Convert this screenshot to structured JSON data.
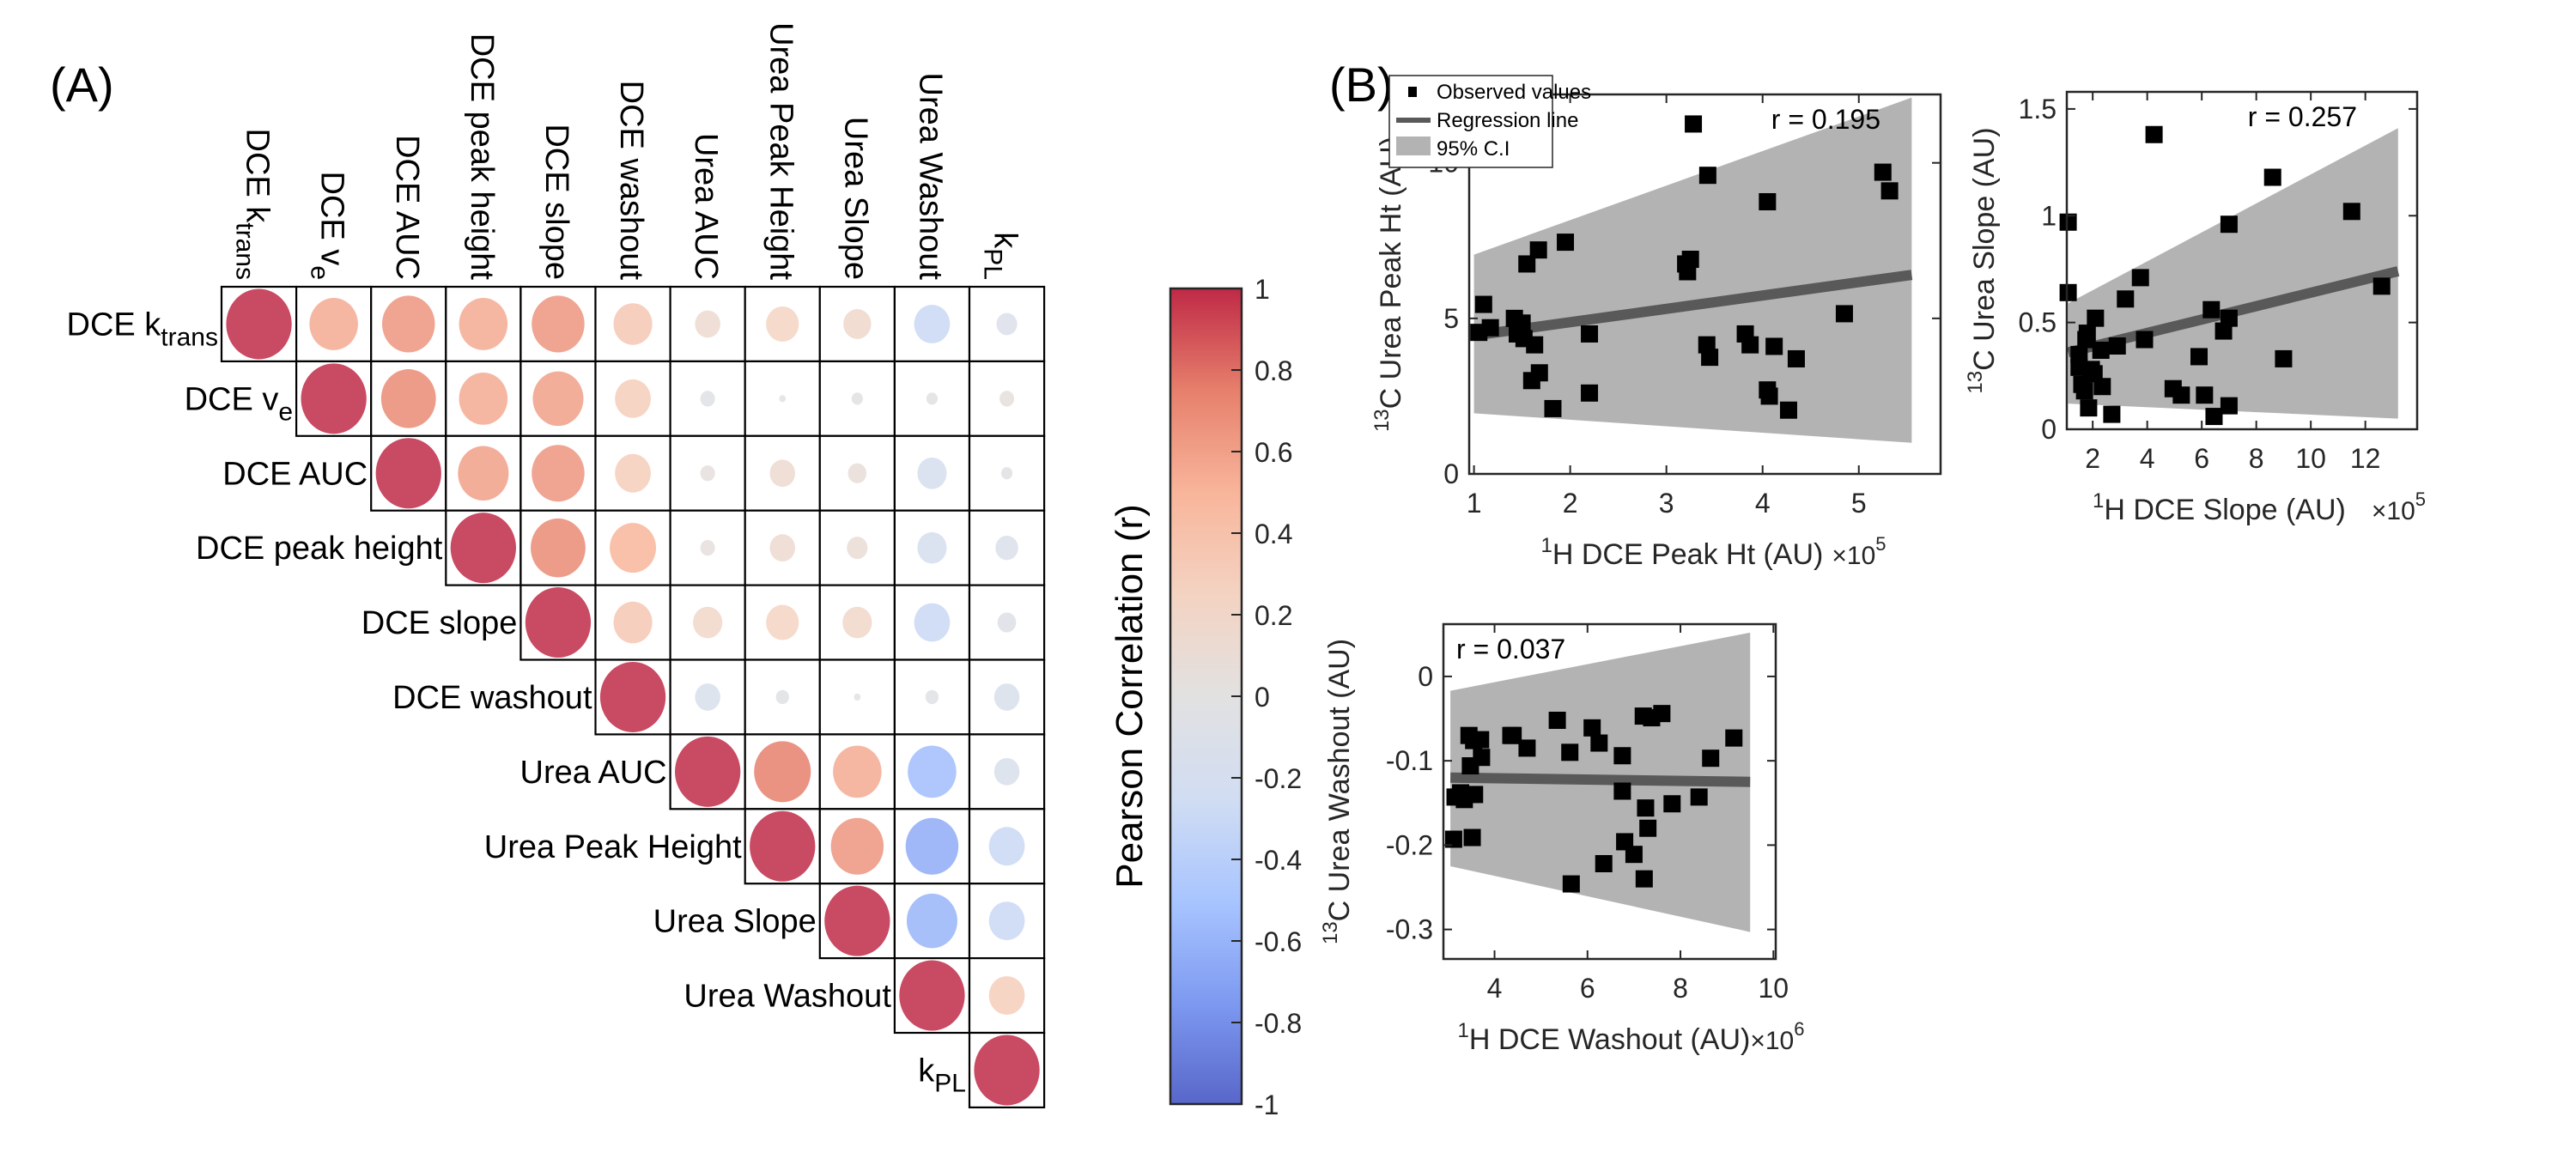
{
  "figure": {
    "panel_a_label": "(A)",
    "panel_b_label": "(B)"
  },
  "chart_data": [
    {
      "type": "heatmap",
      "subtype": "correlation-circle-matrix-upper-triangle",
      "title": "",
      "variables": [
        {
          "base": "DCE k",
          "sub": "trans"
        },
        {
          "base": "DCE v",
          "sub": "e"
        },
        {
          "base": "DCE AUC",
          "sub": ""
        },
        {
          "base": "DCE peak height",
          "sub": ""
        },
        {
          "base": "DCE slope",
          "sub": ""
        },
        {
          "base": "DCE washout",
          "sub": ""
        },
        {
          "base": "Urea AUC",
          "sub": ""
        },
        {
          "base": "Urea Peak Height",
          "sub": ""
        },
        {
          "base": "Urea Slope",
          "sub": ""
        },
        {
          "base": "Urea Washout",
          "sub": ""
        },
        {
          "base": "k",
          "sub": "PL"
        }
      ],
      "matrix_upper": [
        [
          1.0,
          0.55,
          0.65,
          0.55,
          0.65,
          0.35,
          0.15,
          0.25,
          0.18,
          -0.3,
          -0.1
        ],
        [
          1.0,
          0.7,
          0.55,
          0.6,
          0.3,
          -0.05,
          0.01,
          -0.03,
          -0.03,
          0.05
        ],
        [
          1.0,
          0.6,
          0.65,
          0.3,
          0.05,
          0.15,
          0.08,
          -0.2,
          -0.03
        ],
        [
          1.0,
          0.7,
          0.5,
          0.05,
          0.15,
          0.1,
          -0.2,
          -0.12
        ],
        [
          1.0,
          0.35,
          0.2,
          0.25,
          0.2,
          -0.3,
          -0.08
        ],
        [
          1.0,
          -0.15,
          -0.04,
          0.01,
          -0.04,
          -0.15
        ],
        [
          1.0,
          0.75,
          0.55,
          -0.55,
          -0.15
        ],
        [
          1.0,
          0.65,
          -0.65,
          -0.3
        ],
        [
          1.0,
          -0.6,
          -0.3
        ],
        [
          1.0,
          0.3
        ],
        [
          1.0
        ]
      ],
      "colorbar": {
        "label": "Pearson Correlation (r)",
        "range": [
          -1,
          1
        ],
        "ticks": [
          "1",
          "0.8",
          "0.6",
          "0.4",
          "0.2",
          "0",
          "-0.2",
          "-0.4",
          "-0.6",
          "-0.8",
          "-1"
        ],
        "colormap": [
          "#3b4cc0",
          "#6788ee",
          "#9abbff",
          "#c9d7f0",
          "#dddcdc",
          "#f2cbb7",
          "#f7a889",
          "#e26952",
          "#b40426"
        ]
      }
    },
    {
      "type": "scatter",
      "xlabel_pre": "1",
      "xlabel": "H DCE Peak Ht (AU)",
      "x_multiplier": "×10",
      "x_exp": "5",
      "ylabel_pre": "13",
      "ylabel": "C Urea Peak Ht (AU)",
      "xlim": [
        0.95,
        5.85
      ],
      "ylim": [
        0,
        12.2
      ],
      "xticks": [
        1,
        2,
        3,
        4,
        5
      ],
      "yticks": [
        0,
        5,
        10
      ],
      "annotation": "r = 0.195",
      "annotation_position": "top-right",
      "legend": {
        "position": "top-left",
        "entries": [
          "Observed values",
          "Regression line",
          "95% C.I"
        ]
      },
      "regression": {
        "x": [
          1.0,
          5.55
        ],
        "y": [
          4.45,
          6.4
        ]
      },
      "ci_upper": {
        "x": [
          1.0,
          5.55
        ],
        "y": [
          7.05,
          12.1
        ]
      },
      "ci_lower": {
        "x": [
          1.0,
          5.55
        ],
        "y": [
          1.95,
          1.0
        ]
      },
      "points": [
        [
          1.05,
          4.55
        ],
        [
          1.1,
          5.45
        ],
        [
          1.17,
          4.7
        ],
        [
          1.42,
          5.0
        ],
        [
          1.45,
          4.5
        ],
        [
          1.5,
          4.85
        ],
        [
          1.52,
          4.35
        ],
        [
          1.55,
          6.75
        ],
        [
          1.63,
          4.15
        ],
        [
          1.6,
          3.0
        ],
        [
          1.68,
          3.25
        ],
        [
          1.67,
          7.2
        ],
        [
          1.82,
          2.1
        ],
        [
          1.95,
          7.45
        ],
        [
          2.2,
          4.5
        ],
        [
          2.2,
          2.6
        ],
        [
          3.2,
          6.75
        ],
        [
          3.25,
          6.9
        ],
        [
          3.22,
          6.5
        ],
        [
          3.28,
          11.25
        ],
        [
          3.42,
          4.15
        ],
        [
          3.45,
          3.75
        ],
        [
          3.43,
          9.6
        ],
        [
          3.82,
          4.5
        ],
        [
          3.87,
          4.15
        ],
        [
          4.05,
          8.75
        ],
        [
          4.05,
          2.7
        ],
        [
          4.07,
          2.5
        ],
        [
          4.12,
          4.1
        ],
        [
          4.27,
          2.05
        ],
        [
          4.35,
          3.7
        ],
        [
          4.85,
          5.15
        ],
        [
          5.25,
          9.7
        ],
        [
          5.32,
          9.1
        ]
      ]
    },
    {
      "type": "scatter",
      "xlabel_pre": "1",
      "xlabel": "H DCE Slope (AU)",
      "x_multiplier": "×10",
      "x_exp": "5",
      "ylabel_pre": "13",
      "ylabel": "C Urea Slope (AU)",
      "xlim": [
        1.05,
        13.9
      ],
      "ylim": [
        0,
        1.58
      ],
      "xticks": [
        2,
        4,
        6,
        8,
        10,
        12
      ],
      "yticks": [
        0,
        0.5,
        1,
        1.5
      ],
      "annotation": "r = 0.257",
      "annotation_position": "top-right",
      "regression": {
        "x": [
          1.1,
          13.2
        ],
        "y": [
          0.36,
          0.74
        ]
      },
      "ci_upper": {
        "x": [
          1.1,
          13.2
        ],
        "y": [
          0.59,
          1.41
        ]
      },
      "ci_lower": {
        "x": [
          1.1,
          13.2
        ],
        "y": [
          0.12,
          0.05
        ]
      },
      "points": [
        [
          1.1,
          0.97
        ],
        [
          1.1,
          0.64
        ],
        [
          1.5,
          0.35
        ],
        [
          1.5,
          0.29
        ],
        [
          1.6,
          0.21
        ],
        [
          1.7,
          0.18
        ],
        [
          1.75,
          0.42
        ],
        [
          1.8,
          0.45
        ],
        [
          1.85,
          0.1
        ],
        [
          1.95,
          0.28
        ],
        [
          2.05,
          0.26
        ],
        [
          2.1,
          0.52
        ],
        [
          2.3,
          0.37
        ],
        [
          2.35,
          0.2
        ],
        [
          2.7,
          0.07
        ],
        [
          2.9,
          0.39
        ],
        [
          3.2,
          0.61
        ],
        [
          3.75,
          0.71
        ],
        [
          3.9,
          0.42
        ],
        [
          4.25,
          1.38
        ],
        [
          4.95,
          0.19
        ],
        [
          5.25,
          0.16
        ],
        [
          5.9,
          0.34
        ],
        [
          6.1,
          0.16
        ],
        [
          6.35,
          0.56
        ],
        [
          6.45,
          0.06
        ],
        [
          6.8,
          0.46
        ],
        [
          7.0,
          0.52
        ],
        [
          7.0,
          0.96
        ],
        [
          7.0,
          0.11
        ],
        [
          8.6,
          1.18
        ],
        [
          9.0,
          0.33
        ],
        [
          11.5,
          1.02
        ],
        [
          12.6,
          0.67
        ]
      ]
    },
    {
      "type": "scatter",
      "xlabel_pre": "1",
      "xlabel": "H DCE Washout (AU)",
      "x_multiplier": "×10",
      "x_exp": "6",
      "ylabel_pre": "13",
      "ylabel": "C Urea Washout (AU)",
      "xlim": [
        2.9,
        10.05
      ],
      "ylim": [
        -0.335,
        0.062
      ],
      "xticks": [
        4,
        6,
        8,
        10
      ],
      "yticks": [
        0,
        -0.1,
        -0.2,
        -0.3
      ],
      "annotation": "r = 0.037",
      "annotation_position": "top-left",
      "regression": {
        "x": [
          3.05,
          9.5
        ],
        "y": [
          -0.12,
          -0.125
        ]
      },
      "ci_upper": {
        "x": [
          3.05,
          9.5
        ],
        "y": [
          -0.017,
          0.052
        ]
      },
      "ci_lower": {
        "x": [
          3.05,
          9.5
        ],
        "y": [
          -0.225,
          -0.303
        ]
      },
      "points": [
        [
          3.12,
          -0.193
        ],
        [
          3.15,
          -0.143
        ],
        [
          3.27,
          -0.138
        ],
        [
          3.35,
          -0.146
        ],
        [
          3.45,
          -0.07
        ],
        [
          3.48,
          -0.106
        ],
        [
          3.52,
          -0.191
        ],
        [
          3.55,
          -0.076
        ],
        [
          3.57,
          -0.14
        ],
        [
          3.7,
          -0.075
        ],
        [
          3.72,
          -0.096
        ],
        [
          4.35,
          -0.07
        ],
        [
          4.4,
          -0.07
        ],
        [
          4.7,
          -0.085
        ],
        [
          5.35,
          -0.052
        ],
        [
          5.62,
          -0.09
        ],
        [
          5.65,
          -0.246
        ],
        [
          6.1,
          -0.061
        ],
        [
          6.25,
          -0.079
        ],
        [
          6.35,
          -0.222
        ],
        [
          6.75,
          -0.094
        ],
        [
          6.75,
          -0.136
        ],
        [
          6.8,
          -0.196
        ],
        [
          7.0,
          -0.211
        ],
        [
          7.2,
          -0.047
        ],
        [
          7.25,
          -0.156
        ],
        [
          7.3,
          -0.18
        ],
        [
          7.22,
          -0.24
        ],
        [
          7.38,
          -0.049
        ],
        [
          7.6,
          -0.044
        ],
        [
          7.82,
          -0.151
        ],
        [
          8.4,
          -0.143
        ],
        [
          8.65,
          -0.097
        ],
        [
          9.15,
          -0.073
        ]
      ]
    }
  ]
}
